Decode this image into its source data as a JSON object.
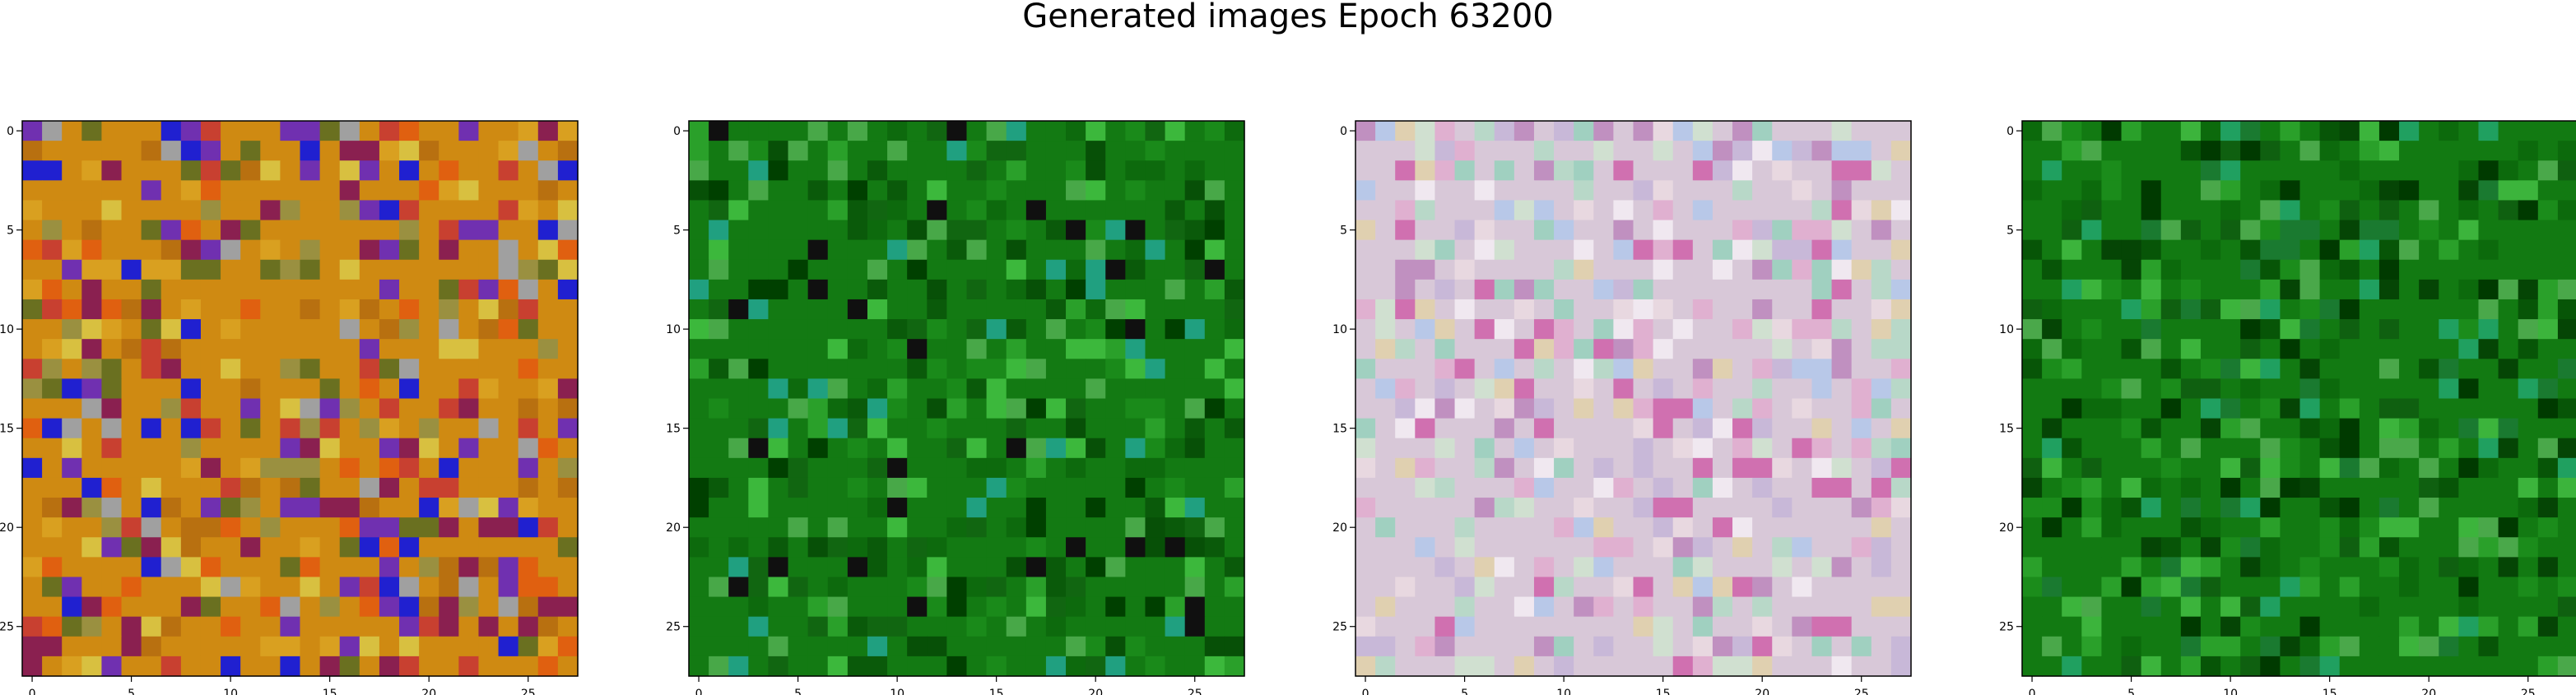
{
  "figure": {
    "title": "Generated images Epoch 63200"
  },
  "chart_data": [
    {
      "type": "heatmap",
      "subtype": "rgb-image",
      "grid_size": [
        28,
        28
      ],
      "xlim": [
        -0.5,
        27.5
      ],
      "ylim": [
        27.5,
        -0.5
      ],
      "xticks": [
        0,
        5,
        10,
        15,
        20,
        25
      ],
      "yticks": [
        0,
        5,
        10,
        15,
        20,
        25
      ],
      "dominant_color": "#cf8a12",
      "palette": [
        "#cf8a12",
        "#d9a020",
        "#b87010",
        "#e06010",
        "#c84030",
        "#8a2050",
        "#d8c040",
        "#9a9040",
        "#6a7020",
        "#2020d0",
        "#7030b0",
        "#a0a0a0"
      ],
      "pixels_seed": 1
    },
    {
      "type": "heatmap",
      "subtype": "rgb-image",
      "grid_size": [
        28,
        28
      ],
      "xlim": [
        -0.5,
        27.5
      ],
      "ylim": [
        27.5,
        -0.5
      ],
      "xticks": [
        0,
        5,
        10,
        15,
        20,
        25
      ],
      "yticks": [
        0,
        5,
        10,
        15,
        20,
        25
      ],
      "dominant_color": "#137a13",
      "palette": [
        "#137a13",
        "#0d6a0d",
        "#1a8a1a",
        "#2aa02a",
        "#0a5a0a",
        "#3cb83c",
        "#116611",
        "#075007",
        "#48a848",
        "#004000",
        "#101010",
        "#20a080"
      ],
      "pixels_seed": 2
    },
    {
      "type": "heatmap",
      "subtype": "rgb-image",
      "grid_size": [
        28,
        28
      ],
      "xlim": [
        -0.5,
        27.5
      ],
      "ylim": [
        27.5,
        -0.5
      ],
      "xticks": [
        0,
        5,
        10,
        15,
        20,
        25
      ],
      "yticks": [
        0,
        5,
        10,
        15,
        20,
        25
      ],
      "dominant_color": "#d8c8d8",
      "palette": [
        "#d8c8d8",
        "#e8d8e0",
        "#c8b8d8",
        "#e0b0d0",
        "#d0e0d0",
        "#f0e8f0",
        "#b8d8c8",
        "#e0d0b0",
        "#c090c0",
        "#b8c8e8",
        "#a0d0c0",
        "#d070b0"
      ],
      "pixels_seed": 3
    },
    {
      "type": "heatmap",
      "subtype": "rgb-image",
      "grid_size": [
        28,
        28
      ],
      "xlim": [
        -0.5,
        27.5
      ],
      "ylim": [
        27.5,
        -0.5
      ],
      "xticks": [
        0,
        5,
        10,
        15,
        20,
        25
      ],
      "yticks": [
        0,
        5,
        10,
        15,
        20,
        25
      ],
      "dominant_color": "#127a12",
      "palette": [
        "#127a12",
        "#0c6a0c",
        "#1b8c1b",
        "#2aa02a",
        "#075507",
        "#3cb43c",
        "#0f6010",
        "#054505",
        "#4aa84a",
        "#003a00",
        "#20a060",
        "#1a7a30"
      ],
      "pixels_seed": 4
    }
  ]
}
